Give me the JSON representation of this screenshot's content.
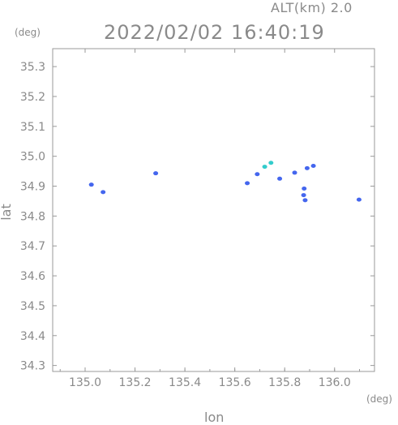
{
  "header": {
    "altitude": "ALT(km) 2.0",
    "timestamp": "2022/02/02 16:40:19"
  },
  "chart_data": {
    "type": "scatter",
    "title": "",
    "xlabel": "lon",
    "ylabel": "lat",
    "x_unit": "(deg)",
    "y_unit": "(deg)",
    "xlim": [
      134.87,
      136.16
    ],
    "ylim": [
      34.28,
      35.36
    ],
    "x_ticks": [
      135.0,
      135.2,
      135.4,
      135.6,
      135.8,
      136.0
    ],
    "x_tick_labels": [
      "135.0",
      "135.2",
      "135.4",
      "135.6",
      "135.8",
      "136.0"
    ],
    "y_ticks": [
      34.3,
      34.4,
      34.5,
      34.6,
      34.7,
      34.8,
      34.9,
      35.0,
      35.1,
      35.2,
      35.3
    ],
    "y_tick_labels": [
      "34.3",
      "34.4",
      "34.5",
      "34.6",
      "34.7",
      "34.8",
      "34.9",
      "35.0",
      "35.1",
      "35.2",
      "35.3"
    ],
    "grid": false,
    "colors": {
      "echo": "#4466ee",
      "echo_strong": "#33cccc",
      "axis": "#999999"
    },
    "blobs": [
      {
        "x": 135.025,
        "y": 34.905,
        "color": "#4466ee"
      },
      {
        "x": 135.072,
        "y": 34.88,
        "color": "#4466ee"
      },
      {
        "x": 135.283,
        "y": 34.943,
        "color": "#4466ee"
      },
      {
        "x": 135.65,
        "y": 34.91,
        "color": "#4466ee"
      },
      {
        "x": 135.69,
        "y": 34.94,
        "color": "#4466ee"
      },
      {
        "x": 135.72,
        "y": 34.965,
        "color": "#33cccc"
      },
      {
        "x": 135.745,
        "y": 34.978,
        "color": "#33cccc"
      },
      {
        "x": 135.78,
        "y": 34.925,
        "color": "#4466ee"
      },
      {
        "x": 135.84,
        "y": 34.945,
        "color": "#4466ee"
      },
      {
        "x": 135.89,
        "y": 34.96,
        "color": "#4466ee"
      },
      {
        "x": 135.915,
        "y": 34.968,
        "color": "#4466ee"
      },
      {
        "x": 135.878,
        "y": 34.892,
        "color": "#4466ee"
      },
      {
        "x": 135.876,
        "y": 34.87,
        "color": "#4466ee"
      },
      {
        "x": 135.882,
        "y": 34.853,
        "color": "#4466ee"
      },
      {
        "x": 136.098,
        "y": 34.855,
        "color": "#4466ee"
      }
    ]
  }
}
